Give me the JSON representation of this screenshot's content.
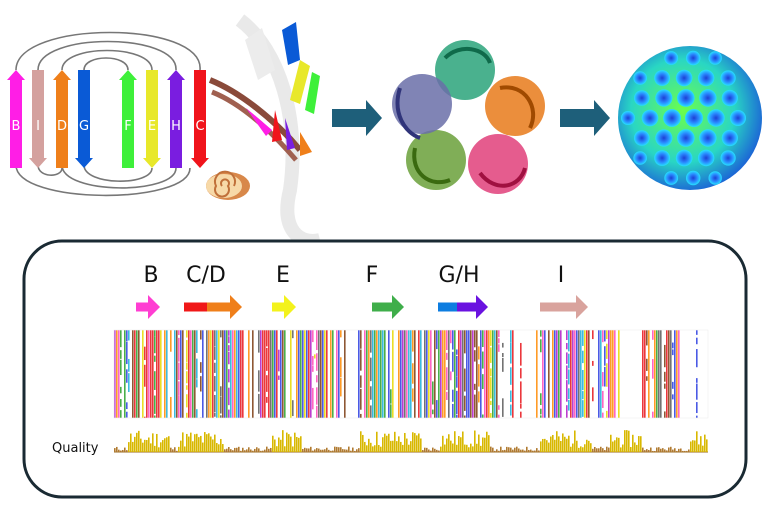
{
  "topology": {
    "strands": [
      {
        "label": "B",
        "color": "#ff1ee6",
        "dir": "up"
      },
      {
        "label": "I",
        "color": "#d4a19e",
        "dir": "down"
      },
      {
        "label": "D",
        "color": "#ef7f1a",
        "dir": "up"
      },
      {
        "label": "G",
        "color": "#0a5ad6",
        "dir": "down"
      },
      {
        "label": "F",
        "color": "#3ef03a",
        "dir": "up"
      },
      {
        "label": "E",
        "color": "#e8e82a",
        "dir": "down"
      },
      {
        "label": "H",
        "color": "#7a1de0",
        "dir": "up"
      },
      {
        "label": "C",
        "color": "#f0141b",
        "dir": "down"
      }
    ]
  },
  "flow_arrow_color": "#1e5f7a",
  "alignment_panel": {
    "segments": [
      {
        "label": "B",
        "colors": [
          "#ff3ed2"
        ]
      },
      {
        "label": "C/D",
        "colors": [
          "#f01818",
          "#ef7f1a"
        ]
      },
      {
        "label": "E",
        "colors": [
          "#f3f21c"
        ]
      },
      {
        "label": "F",
        "colors": [
          "#3fae4a"
        ]
      },
      {
        "label": "G/H",
        "colors": [
          "#0d7de0",
          "#6a12e0"
        ]
      },
      {
        "label": "I",
        "colors": [
          "#d9a39d"
        ]
      }
    ],
    "quality_label": "Quality",
    "quality_color": "#d8b800"
  }
}
